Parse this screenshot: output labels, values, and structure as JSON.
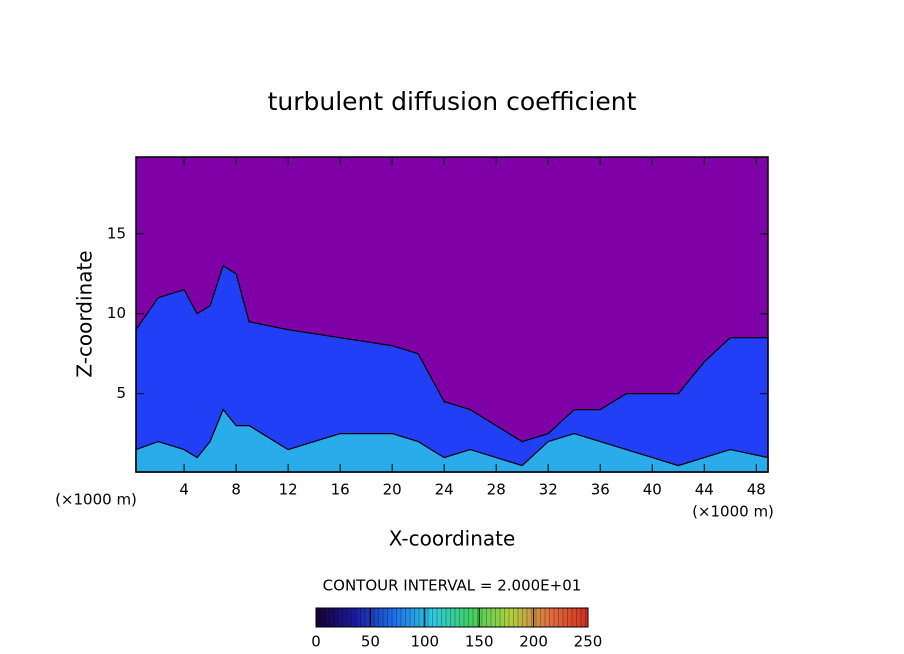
{
  "chart_data": {
    "type": "contour",
    "title": "turbulent diffusion coefficient",
    "x_label": "X-coordinate",
    "y_label": "Z-coordinate",
    "x_unit": "(×1000 m)",
    "y_unit": "(×1000 m)",
    "annotation": "CONTOUR INTERVAL = 2.000E+01",
    "background_color": "#7e00a6",
    "x": [
      0.3,
      2,
      4,
      5,
      6,
      7,
      8,
      9,
      12,
      16,
      20,
      22,
      23,
      24,
      26,
      28,
      30,
      32,
      34,
      36,
      38,
      40,
      42,
      44,
      46,
      48.9
    ],
    "series": [
      {
        "color": "#1646ff",
        "values": [
          9,
          11,
          11.5,
          10,
          10.5,
          13,
          12.5,
          9.5,
          9,
          8.5,
          8,
          7.5,
          6,
          4.5,
          4,
          3,
          2,
          2.5,
          4,
          4,
          5,
          5,
          5,
          7,
          8.5,
          8.5
        ]
      },
      {
        "color": "#2ab8e8",
        "values": [
          1.5,
          2,
          1.5,
          1,
          2,
          4,
          3,
          3,
          1.5,
          2.5,
          2.5,
          2,
          1.5,
          1,
          1.5,
          1,
          0.5,
          2,
          2.5,
          2,
          1.5,
          1,
          0.5,
          1,
          1.5,
          1
        ]
      }
    ],
    "xlim": [
      0.3,
      48.9
    ],
    "ylim": [
      0.1,
      19.8
    ],
    "xticks": [
      4,
      8,
      12,
      16,
      20,
      24,
      28,
      32,
      36,
      40,
      44,
      48
    ],
    "yticks": [
      5,
      10,
      15
    ],
    "colorbar": {
      "lim": [
        0,
        250
      ],
      "ticks": [
        0,
        50,
        100,
        150,
        200,
        250
      ],
      "colors": [
        "#1a0030",
        "#1a1aa0",
        "#1e6ee8",
        "#30c8e0",
        "#40d060",
        "#b0d040",
        "#e07040",
        "#d03020"
      ]
    }
  }
}
